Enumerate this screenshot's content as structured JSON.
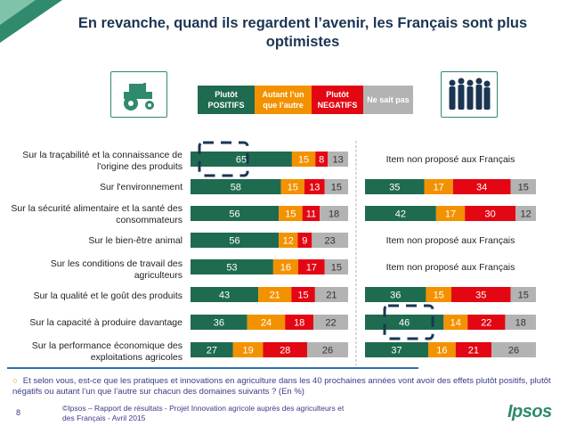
{
  "title": "En revanche, quand ils regardent l’avenir, les Français sont plus optimistes",
  "colors": {
    "positive": "#1f6b4f",
    "same": "#f39200",
    "negative": "#e30613",
    "unknown": "#b3b3b3",
    "accent": "#2f8a6e"
  },
  "legend": [
    {
      "label": "Plutôt POSITIFS",
      "color": "#1f6b4f"
    },
    {
      "label": "Autant l’un que l’autre",
      "color": "#f39200"
    },
    {
      "label": "Plutôt NEGATIFS",
      "color": "#e30613"
    },
    {
      "label": "Ne sait pas",
      "color": "#b3b3b3"
    }
  ],
  "icons": {
    "left": "tractor-icon",
    "right": "people-group-icon"
  },
  "chart_data": {
    "type": "bar",
    "stacked": true,
    "orientation": "horizontal",
    "categories": [
      "Sur la traçabilité et la connaissance de l'origine des produits",
      "Sur l'environnement",
      "Sur la sécurité alimentaire et la santé des consommateurs",
      "Sur le bien-être animal",
      "Sur les conditions de travail des agriculteurs",
      "Sur la qualité et le goût des produits",
      "Sur la capacité à produire davantage",
      "Sur la performance économique des exploitations agricoles"
    ],
    "segments": [
      "Plutôt POSITIFS",
      "Autant l’un que l’autre",
      "Plutôt NEGATIFS",
      "Ne sait pas"
    ],
    "panels": [
      {
        "group": "Agriculteurs",
        "rows": [
          [
            65,
            15,
            8,
            13
          ],
          [
            58,
            15,
            13,
            15
          ],
          [
            56,
            15,
            11,
            18
          ],
          [
            56,
            12,
            9,
            23
          ],
          [
            53,
            16,
            17,
            15
          ],
          [
            43,
            21,
            15,
            21
          ],
          [
            36,
            24,
            18,
            22
          ],
          [
            27,
            19,
            28,
            26
          ]
        ],
        "highlight_row": 0
      },
      {
        "group": "Français",
        "rows": [
          null,
          [
            35,
            17,
            34,
            15
          ],
          [
            42,
            17,
            30,
            12
          ],
          null,
          null,
          [
            36,
            15,
            35,
            15
          ],
          [
            46,
            14,
            22,
            18
          ],
          [
            37,
            16,
            21,
            26
          ]
        ],
        "highlight_row": 6,
        "missing_text": "Item non proposé aux Français"
      }
    ],
    "unit": "%"
  },
  "footnote": "Et selon vous, est-ce que les pratiques et innovations en agriculture dans les 40 prochaines années vont avoir des effets plutôt positifs, plutôt négatifs ou autant l’un que l’autre sur chacun des domaines suivants ? (En %)",
  "page_number": "8",
  "source": "©Ipsos – Rapport de résultats - Projet Innovation agricole auprès des agriculteurs et des Français - Avril 2015",
  "logo_text": "Ipsos"
}
